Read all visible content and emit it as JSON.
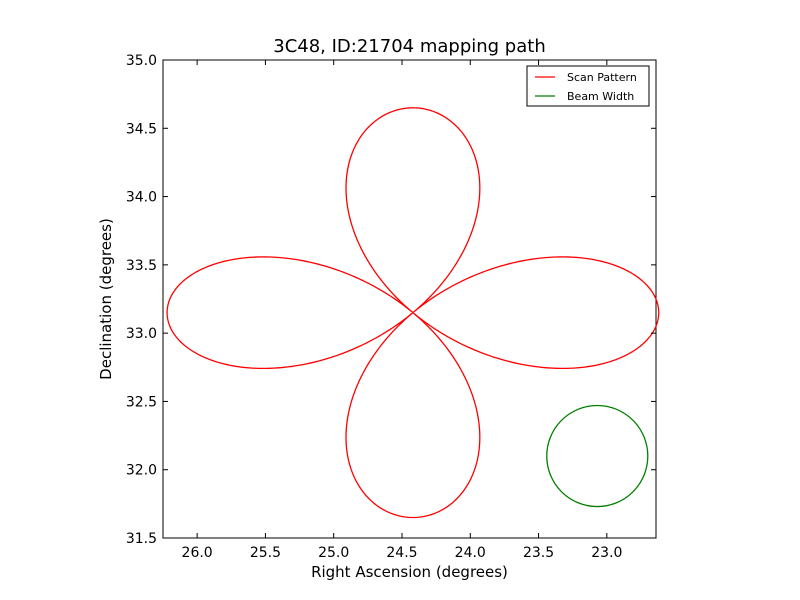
{
  "chart_data": {
    "type": "line",
    "title": "3C48, ID:21704 mapping path",
    "xlabel": "Right Ascension (degrees)",
    "ylabel": "Declination (degrees)",
    "xlim": [
      26.25,
      22.64
    ],
    "ylim": [
      31.5,
      35.0
    ],
    "x_ticks": [
      26.0,
      25.5,
      25.0,
      24.5,
      24.0,
      23.5,
      23.0
    ],
    "x_tick_labels": [
      "26.0",
      "25.5",
      "25.0",
      "24.5",
      "24.0",
      "23.5",
      "23.0"
    ],
    "y_ticks": [
      31.5,
      32.0,
      32.5,
      33.0,
      33.5,
      34.0,
      34.5,
      35.0
    ],
    "y_tick_labels": [
      "31.5",
      "32.0",
      "32.5",
      "33.0",
      "33.5",
      "34.0",
      "34.5",
      "35.0"
    ],
    "grid": false,
    "legend_position": "top-right",
    "series": [
      {
        "name": "Scan Pattern",
        "color": "#ff0000",
        "shape": "four-petal rose",
        "center": [
          24.42,
          33.15
        ],
        "petal_reach_ra": 1.8,
        "petal_reach_dec": 1.5
      },
      {
        "name": "Beam Width",
        "color": "#008000",
        "shape": "circle",
        "center": [
          23.07,
          32.1
        ],
        "radius_deg": 0.37
      }
    ]
  }
}
